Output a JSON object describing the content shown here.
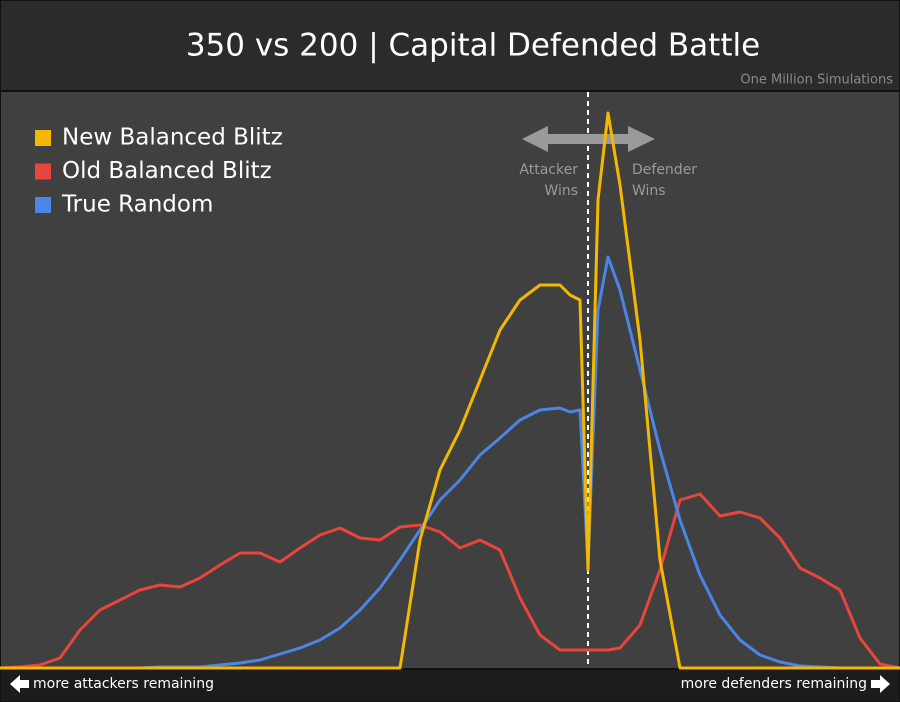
{
  "chart_data": {
    "type": "line",
    "title": "350 vs 200 | Capital Defended Battle",
    "subtitle": "One Million Simulations",
    "left_annotation": [
      "Attacker",
      "Wins"
    ],
    "right_annotation": [
      "Defender",
      "Wins"
    ],
    "left_footer": "more attackers remaining",
    "right_footer": "more defenders remaining",
    "xlim": [
      0,
      900
    ],
    "ylim": [
      0,
      576
    ],
    "x": [
      0,
      20,
      40,
      60,
      80,
      100,
      120,
      140,
      160,
      180,
      200,
      220,
      240,
      260,
      280,
      300,
      320,
      340,
      360,
      380,
      400,
      420,
      440,
      460,
      480,
      500,
      520,
      540,
      560,
      570,
      580,
      588,
      598,
      608,
      620,
      640,
      660,
      680,
      700,
      720,
      740,
      760,
      780,
      800,
      820,
      840,
      860,
      880,
      900
    ],
    "series": [
      {
        "name": "New Balanced Blitz",
        "color": "#f5b800",
        "values": [
          0,
          0,
          0,
          0,
          0,
          0,
          0,
          0,
          0,
          0,
          0,
          0,
          0,
          0,
          0,
          0,
          0,
          0,
          0,
          0,
          0,
          128,
          198,
          238,
          288,
          338,
          368,
          383,
          383,
          373,
          368,
          98,
          468,
          555,
          483,
          328,
          108,
          0,
          0,
          0,
          0,
          0,
          0,
          0,
          0,
          0,
          0,
          0,
          0
        ]
      },
      {
        "name": "Old Balanced Blitz",
        "color": "#e8453c",
        "values": [
          0,
          1,
          3,
          10,
          38,
          58,
          68,
          78,
          83,
          81,
          90,
          103,
          115,
          115,
          106,
          120,
          133,
          140,
          130,
          128,
          141,
          143,
          136,
          120,
          128,
          118,
          70,
          33,
          18,
          18,
          18,
          18,
          18,
          18,
          20,
          43,
          98,
          168,
          174,
          152,
          156,
          150,
          130,
          100,
          90,
          78,
          30,
          4,
          0
        ]
      },
      {
        "name": "True Random",
        "color": "#4a86e8",
        "values": [
          0,
          0,
          0,
          0,
          0,
          0,
          0,
          0,
          1,
          1,
          1,
          3,
          5,
          8,
          14,
          20,
          28,
          40,
          58,
          80,
          108,
          138,
          168,
          188,
          213,
          230,
          248,
          258,
          260,
          256,
          258,
          103,
          358,
          411,
          378,
          298,
          218,
          148,
          93,
          53,
          28,
          13,
          6,
          2,
          1,
          0,
          0,
          0,
          0
        ]
      }
    ]
  }
}
